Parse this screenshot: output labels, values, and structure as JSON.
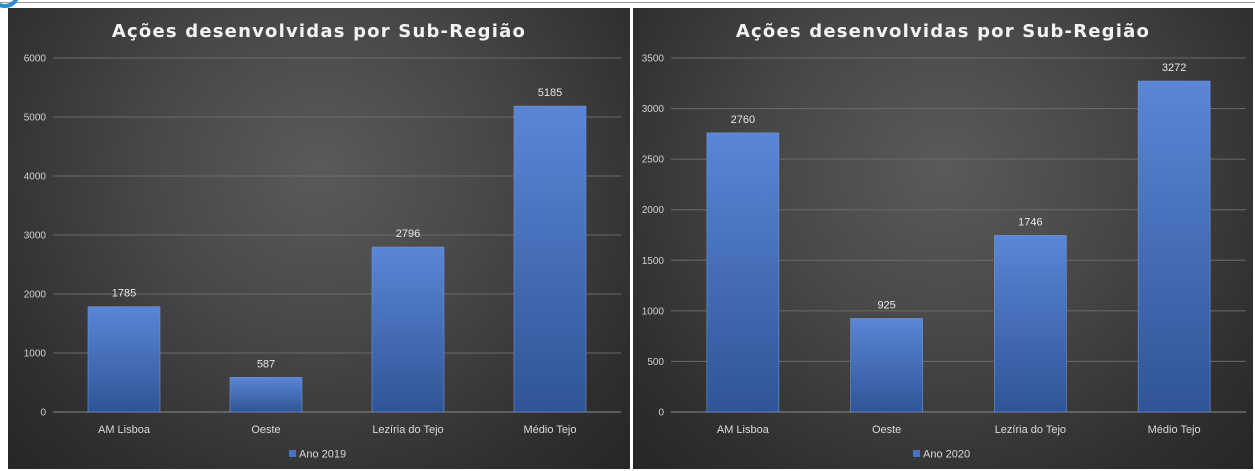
{
  "colors": {
    "bar": "#4472c4",
    "bar_light": "#5b86d6",
    "bar_dark": "#2f5597",
    "background": "#404040"
  },
  "chart_data": [
    {
      "type": "bar",
      "title": "Ações desenvolvidas por Sub-Região",
      "categories": [
        "AM Lisboa",
        "Oeste",
        "Lezíria do Tejo",
        "Médio Tejo"
      ],
      "series": [
        {
          "name": "Ano 2019",
          "values": [
            1785,
            587,
            2796,
            5185
          ]
        }
      ],
      "value_labels": [
        "1785",
        "587",
        "2796",
        "5185"
      ],
      "ylim": [
        0,
        6000
      ],
      "yticks": [
        "0",
        "1000",
        "2000",
        "3000",
        "4000",
        "5000",
        "6000"
      ],
      "grid": true,
      "legend": "bottom"
    },
    {
      "type": "bar",
      "title": "Ações desenvolvidas por Sub-Região",
      "categories": [
        "AM Lisboa",
        "Oeste",
        "Lezíria do Tejo",
        "Médio Tejo"
      ],
      "series": [
        {
          "name": "Ano 2020",
          "values": [
            2760,
            925,
            1746,
            3272
          ]
        }
      ],
      "value_labels": [
        "2760",
        "925",
        "1746",
        "3272"
      ],
      "ylim": [
        0,
        3500
      ],
      "yticks": [
        "0",
        "500",
        "1000",
        "1500",
        "2000",
        "2500",
        "3000",
        "3500"
      ],
      "grid": true,
      "legend": "bottom"
    }
  ]
}
